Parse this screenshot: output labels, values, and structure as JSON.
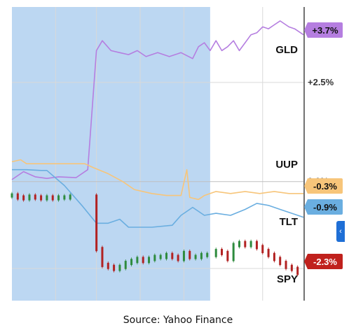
{
  "source": "Source: Yahoo Finance",
  "side_tab_glyph": "‹",
  "colors": {
    "highlight": "#bcd7f2",
    "grid": "#d9d9d9",
    "zero_line": "#bfbfbf",
    "axis": "#444444",
    "GLD": "#b57ee0",
    "UUP": "#f7c57a",
    "TLT": "#6aaee0",
    "SPY_up": "#2e8b3e",
    "SPY_down": "#b22222"
  },
  "chart_data": {
    "type": "line",
    "title": "",
    "xlabel": "",
    "ylabel": "",
    "ylim": [
      -3.0,
      4.4
    ],
    "y_ticks": [
      {
        "value": 2.5,
        "label": "+2.5%"
      },
      {
        "value": 0.0,
        "label": "0.0%"
      }
    ],
    "x_range": [
      0,
      100
    ],
    "x_gridlines": [
      15,
      29,
      44,
      59,
      86
    ],
    "highlight_range": [
      0,
      68
    ],
    "series": [
      {
        "name": "GLD",
        "last_value_label": "+3.7%",
        "badge_color": "#b57ee0",
        "badge_text_color": "#111111",
        "points": [
          [
            0,
            0.05
          ],
          [
            4,
            0.25
          ],
          [
            8,
            0.12
          ],
          [
            12,
            0.08
          ],
          [
            16,
            0.12
          ],
          [
            22,
            0.1
          ],
          [
            26,
            0.3
          ],
          [
            29,
            3.3
          ],
          [
            31,
            3.55
          ],
          [
            34,
            3.3
          ],
          [
            37,
            3.25
          ],
          [
            40,
            3.2
          ],
          [
            43,
            3.3
          ],
          [
            46,
            3.15
          ],
          [
            50,
            3.25
          ],
          [
            54,
            3.15
          ],
          [
            58,
            3.25
          ],
          [
            62,
            3.1
          ],
          [
            64,
            3.4
          ],
          [
            66,
            3.5
          ],
          [
            68,
            3.3
          ],
          [
            70,
            3.55
          ],
          [
            72,
            3.3
          ],
          [
            74,
            3.4
          ],
          [
            76,
            3.55
          ],
          [
            78,
            3.3
          ],
          [
            80,
            3.5
          ],
          [
            82,
            3.7
          ],
          [
            84,
            3.75
          ],
          [
            86,
            3.9
          ],
          [
            88,
            3.85
          ],
          [
            90,
            3.95
          ],
          [
            92,
            4.05
          ],
          [
            95,
            3.9
          ],
          [
            97,
            3.85
          ],
          [
            100,
            3.7
          ]
        ]
      },
      {
        "name": "UUP",
        "last_value_label": "-0.3%",
        "badge_color": "#f7c57a",
        "badge_text_color": "#111111",
        "points": [
          [
            0,
            0.5
          ],
          [
            3,
            0.55
          ],
          [
            5,
            0.45
          ],
          [
            20,
            0.45
          ],
          [
            25,
            0.45
          ],
          [
            28,
            0.35
          ],
          [
            33,
            0.2
          ],
          [
            38,
            0.0
          ],
          [
            42,
            -0.2
          ],
          [
            48,
            -0.3
          ],
          [
            53,
            -0.35
          ],
          [
            58,
            -0.35
          ],
          [
            60,
            0.3
          ],
          [
            61,
            -0.4
          ],
          [
            64,
            -0.45
          ],
          [
            66,
            -0.35
          ],
          [
            70,
            -0.25
          ],
          [
            75,
            -0.3
          ],
          [
            80,
            -0.25
          ],
          [
            85,
            -0.3
          ],
          [
            90,
            -0.25
          ],
          [
            95,
            -0.3
          ],
          [
            100,
            -0.3
          ]
        ]
      },
      {
        "name": "TLT",
        "last_value_label": "-0.9%",
        "badge_color": "#6aaee0",
        "badge_text_color": "#111111",
        "points": [
          [
            0,
            0.3
          ],
          [
            5,
            0.3
          ],
          [
            10,
            0.28
          ],
          [
            12,
            0.28
          ],
          [
            18,
            -0.1
          ],
          [
            24,
            -0.6
          ],
          [
            29,
            -1.05
          ],
          [
            33,
            -1.05
          ],
          [
            37,
            -0.95
          ],
          [
            40,
            -1.15
          ],
          [
            48,
            -1.15
          ],
          [
            55,
            -1.1
          ],
          [
            58,
            -0.85
          ],
          [
            62,
            -0.65
          ],
          [
            66,
            -0.85
          ],
          [
            70,
            -0.8
          ],
          [
            75,
            -0.85
          ],
          [
            80,
            -0.7
          ],
          [
            84,
            -0.55
          ],
          [
            88,
            -0.6
          ],
          [
            92,
            -0.7
          ],
          [
            96,
            -0.8
          ],
          [
            100,
            -0.9
          ]
        ]
      }
    ],
    "candlestick_series": {
      "name": "SPY",
      "last_value_label": "-2.3%",
      "badge_color": "#c0211d",
      "badge_text_color": "#ffffff",
      "points": [
        [
          0,
          -0.35
        ],
        [
          2,
          -0.4
        ],
        [
          4,
          -0.42
        ],
        [
          6,
          -0.38
        ],
        [
          8,
          -0.4
        ],
        [
          10,
          -0.42
        ],
        [
          12,
          -0.4
        ],
        [
          14,
          -0.42
        ],
        [
          16,
          -0.4
        ],
        [
          18,
          -0.4
        ],
        [
          20,
          -0.38
        ],
        [
          29,
          -1.7
        ],
        [
          31,
          -2.1
        ],
        [
          33,
          -2.15
        ],
        [
          35,
          -2.2
        ],
        [
          37,
          -2.15
        ],
        [
          39,
          -2.05
        ],
        [
          41,
          -2.0
        ],
        [
          43,
          -1.95
        ],
        [
          45,
          -2.0
        ],
        [
          47,
          -1.95
        ],
        [
          49,
          -1.9
        ],
        [
          51,
          -1.9
        ],
        [
          53,
          -1.85
        ],
        [
          55,
          -1.9
        ],
        [
          57,
          -1.95
        ],
        [
          59,
          -1.8
        ],
        [
          61,
          -1.9
        ],
        [
          63,
          -1.9
        ],
        [
          65,
          -1.85
        ],
        [
          67,
          -1.85
        ],
        [
          70,
          -1.75
        ],
        [
          72,
          -1.8
        ],
        [
          74,
          -1.95
        ],
        [
          76,
          -1.6
        ],
        [
          78,
          -1.55
        ],
        [
          80,
          -1.6
        ],
        [
          82,
          -1.55
        ],
        [
          84,
          -1.65
        ],
        [
          86,
          -1.75
        ],
        [
          88,
          -1.85
        ],
        [
          90,
          -1.95
        ],
        [
          92,
          -2.05
        ],
        [
          94,
          -2.15
        ],
        [
          96,
          -2.2
        ],
        [
          98,
          -2.3
        ]
      ]
    }
  }
}
